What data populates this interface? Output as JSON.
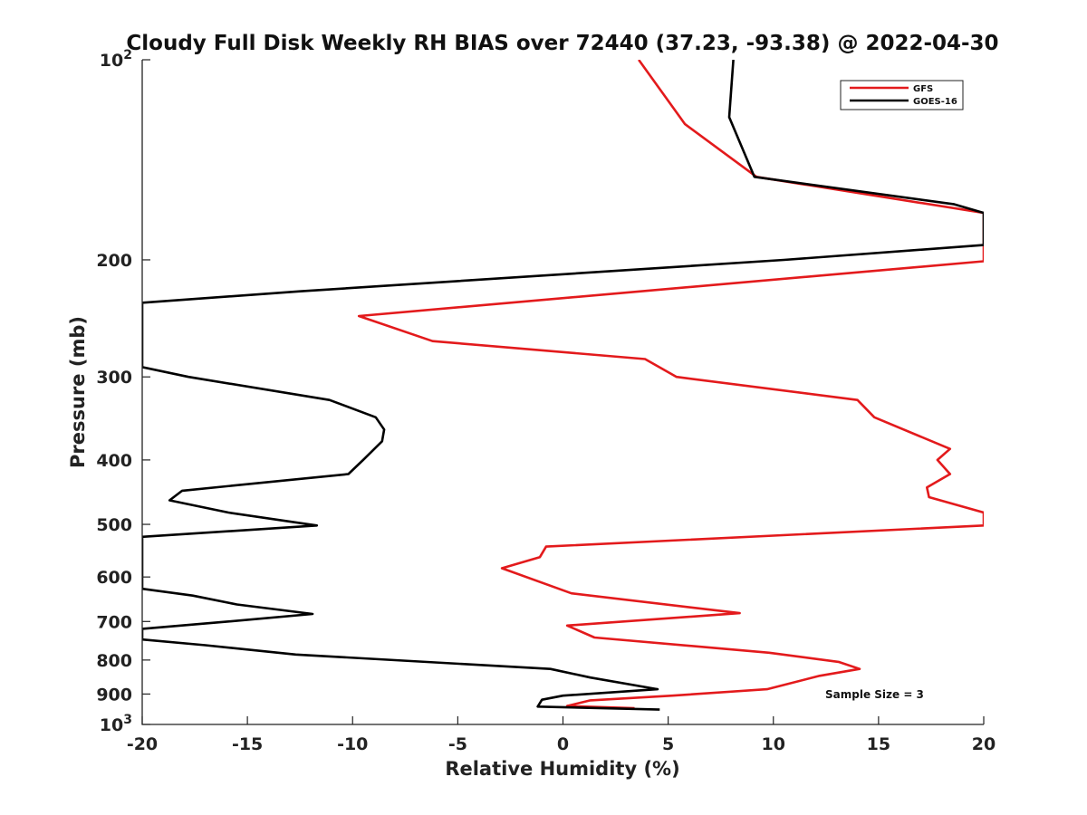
{
  "chart_data": {
    "type": "line",
    "title": "Cloudy Full Disk Weekly RH BIAS over 72440 (37.23, -93.38) @ 2022-04-30",
    "xlabel": "Relative Humidity (%)",
    "ylabel": "Pressure (mb)",
    "xlim": [
      -20,
      20
    ],
    "ylim": [
      100,
      1000
    ],
    "y_scale": "log",
    "y_reversed": true,
    "grid": false,
    "legend_position": "top-right",
    "x_ticks": [
      "-20",
      "-15",
      "-10",
      "-5",
      "0",
      "5",
      "10",
      "15",
      "20"
    ],
    "x_tick_values": [
      -20,
      -15,
      -10,
      -5,
      0,
      5,
      10,
      15,
      20
    ],
    "y_ticks": [
      {
        "value": 100,
        "base": "10",
        "exp": "2"
      },
      {
        "value": 200,
        "label": "200"
      },
      {
        "value": 300,
        "label": "300"
      },
      {
        "value": 400,
        "label": "400"
      },
      {
        "value": 500,
        "label": "500"
      },
      {
        "value": 600,
        "label": "600"
      },
      {
        "value": 700,
        "label": "700"
      },
      {
        "value": 800,
        "label": "800"
      },
      {
        "value": 900,
        "label": "900"
      },
      {
        "value": 1000,
        "base": "10",
        "exp": "3"
      }
    ],
    "annotation": "Sample Size = 3",
    "series": [
      {
        "name": "GFS",
        "color": "#e31a1c",
        "points": [
          [
            3.6,
            100
          ],
          [
            5.8,
            125
          ],
          [
            9.2,
            150
          ],
          [
            20,
            170
          ],
          [
            20,
            201
          ],
          [
            -9.7,
            243
          ],
          [
            -6.2,
            265
          ],
          [
            3.9,
            282
          ],
          [
            5.4,
            300
          ],
          [
            14,
            325
          ],
          [
            14.8,
            345
          ],
          [
            18.4,
            385
          ],
          [
            17.8,
            400
          ],
          [
            18.4,
            420
          ],
          [
            17.3,
            440
          ],
          [
            17.4,
            455
          ],
          [
            20,
            480
          ],
          [
            20,
            502
          ],
          [
            -0.8,
            540
          ],
          [
            -1.1,
            560
          ],
          [
            -2.9,
            582
          ],
          [
            0.4,
            635
          ],
          [
            8.4,
            680
          ],
          [
            0.2,
            710
          ],
          [
            1.5,
            740
          ],
          [
            9.8,
            780
          ],
          [
            13.1,
            805
          ],
          [
            14.1,
            825
          ],
          [
            12.2,
            845
          ],
          [
            9.7,
            885
          ],
          [
            5.2,
            905
          ],
          [
            1.3,
            920
          ],
          [
            0.2,
            938
          ],
          [
            3.4,
            945
          ]
        ]
      },
      {
        "name": "GOES-16",
        "color": "#000000",
        "points": [
          [
            8.1,
            100
          ],
          [
            7.9,
            122
          ],
          [
            9.1,
            150
          ],
          [
            18.6,
            165
          ],
          [
            20,
            170
          ],
          [
            20,
            190
          ],
          [
            10.5,
            200
          ],
          [
            -12.5,
            223
          ],
          [
            -20,
            232
          ],
          [
            -20,
            290
          ],
          [
            -17.8,
            300
          ],
          [
            -11.1,
            325
          ],
          [
            -8.9,
            345
          ],
          [
            -8.5,
            360
          ],
          [
            -8.6,
            375
          ],
          [
            -9.5,
            400
          ],
          [
            -10.2,
            420
          ],
          [
            -18.1,
            445
          ],
          [
            -18.7,
            460
          ],
          [
            -15.9,
            480
          ],
          [
            -11.7,
            502
          ],
          [
            -20,
            522
          ],
          [
            -20,
            625
          ],
          [
            -17.6,
            640
          ],
          [
            -15.5,
            660
          ],
          [
            -11.9,
            682
          ],
          [
            -15.9,
            700
          ],
          [
            -20,
            718
          ],
          [
            -20,
            745
          ],
          [
            -17,
            760
          ],
          [
            -12.7,
            785
          ],
          [
            -0.6,
            825
          ],
          [
            1.3,
            850
          ],
          [
            4.5,
            885
          ],
          [
            0,
            905
          ],
          [
            -1,
            918
          ],
          [
            -1.2,
            940
          ],
          [
            4.6,
            950
          ]
        ]
      }
    ]
  }
}
